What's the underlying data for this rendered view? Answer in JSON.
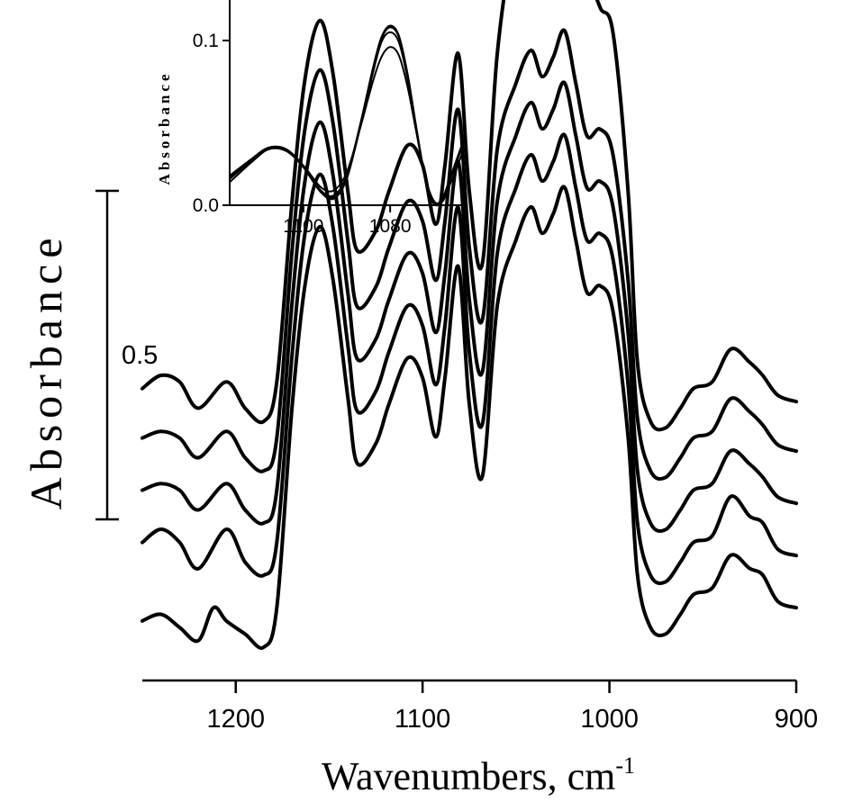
{
  "chart_data": [
    {
      "type": "line",
      "title": "",
      "xlabel": "Wavenumbers, cm",
      "xlabel_superscript": "-1",
      "ylabel": "Absorbance",
      "xlim": [
        1250,
        900
      ],
      "x_reversed": true,
      "x_ticks": [
        1200,
        1100,
        1000,
        900
      ],
      "x_tick_labels": [
        "1200",
        "1100",
        "1000",
        "900"
      ],
      "y_axis_shown": false,
      "scale_bar": {
        "label": "0.5",
        "value": 0.5
      },
      "grid": false,
      "legend": "none",
      "line_color": "#000000",
      "series": [
        {
          "x": [
            1250,
            1240,
            1230,
            1220,
            1205,
            1195,
            1185,
            1178,
            1170,
            1163,
            1155,
            1148,
            1140,
            1135,
            1125,
            1118,
            1108,
            1100,
            1093,
            1088,
            1081,
            1075,
            1068,
            1060,
            1050,
            1042,
            1036,
            1030,
            1024,
            1018,
            1012,
            1005,
            998,
            990,
            985,
            978,
            970,
            962,
            955,
            945,
            935,
            925,
            918,
            910,
            900
          ],
          "y": [
            0.08,
            0.1,
            0.09,
            0.05,
            0.09,
            0.05,
            0.03,
            0.09,
            0.36,
            0.55,
            0.64,
            0.56,
            0.38,
            0.29,
            0.32,
            0.38,
            0.45,
            0.42,
            0.33,
            0.42,
            0.59,
            0.38,
            0.27,
            0.59,
            0.78,
            0.83,
            0.78,
            0.86,
            0.92,
            0.82,
            0.72,
            0.66,
            0.62,
            0.38,
            0.12,
            0.03,
            0.02,
            0.05,
            0.08,
            0.09,
            0.14,
            0.12,
            0.1,
            0.07,
            0.06
          ]
        },
        {
          "x": [
            1250,
            1240,
            1230,
            1220,
            1205,
            1195,
            1185,
            1178,
            1170,
            1163,
            1155,
            1148,
            1140,
            1135,
            1125,
            1118,
            1108,
            1100,
            1093,
            1088,
            1081,
            1075,
            1068,
            1060,
            1050,
            1042,
            1036,
            1030,
            1024,
            1018,
            1012,
            1005,
            998,
            990,
            985,
            978,
            970,
            962,
            955,
            945,
            935,
            925,
            918,
            910,
            900
          ],
          "y": [
            0.08,
            0.09,
            0.08,
            0.05,
            0.09,
            0.05,
            0.03,
            0.08,
            0.36,
            0.55,
            0.64,
            0.56,
            0.38,
            0.28,
            0.31,
            0.37,
            0.44,
            0.41,
            0.32,
            0.41,
            0.58,
            0.37,
            0.26,
            0.52,
            0.62,
            0.67,
            0.63,
            0.66,
            0.7,
            0.62,
            0.54,
            0.55,
            0.51,
            0.32,
            0.11,
            0.03,
            0.02,
            0.05,
            0.08,
            0.09,
            0.14,
            0.12,
            0.1,
            0.07,
            0.06
          ]
        },
        {
          "x": [
            1250,
            1240,
            1230,
            1220,
            1205,
            1195,
            1185,
            1178,
            1170,
            1163,
            1155,
            1148,
            1140,
            1135,
            1125,
            1118,
            1108,
            1100,
            1093,
            1088,
            1081,
            1075,
            1068,
            1060,
            1050,
            1042,
            1036,
            1030,
            1024,
            1018,
            1012,
            1005,
            998,
            990,
            985,
            978,
            970,
            962,
            955,
            945,
            935,
            925,
            918,
            910,
            900
          ],
          "y": [
            0.08,
            0.09,
            0.08,
            0.05,
            0.09,
            0.05,
            0.03,
            0.08,
            0.36,
            0.55,
            0.64,
            0.56,
            0.38,
            0.28,
            0.31,
            0.37,
            0.44,
            0.41,
            0.32,
            0.41,
            0.58,
            0.37,
            0.26,
            0.52,
            0.62,
            0.67,
            0.63,
            0.66,
            0.7,
            0.62,
            0.54,
            0.55,
            0.51,
            0.32,
            0.11,
            0.03,
            0.02,
            0.05,
            0.08,
            0.09,
            0.14,
            0.12,
            0.1,
            0.07,
            0.06
          ]
        },
        {
          "x": [
            1250,
            1240,
            1230,
            1220,
            1205,
            1195,
            1185,
            1178,
            1170,
            1163,
            1155,
            1148,
            1140,
            1135,
            1125,
            1118,
            1108,
            1100,
            1093,
            1088,
            1081,
            1075,
            1068,
            1060,
            1050,
            1042,
            1036,
            1030,
            1024,
            1018,
            1012,
            1005,
            998,
            990,
            985,
            978,
            970,
            962,
            955,
            945,
            935,
            925,
            918,
            910,
            900
          ],
          "y": [
            0.08,
            0.1,
            0.08,
            0.04,
            0.1,
            0.05,
            0.03,
            0.08,
            0.36,
            0.55,
            0.64,
            0.56,
            0.38,
            0.28,
            0.31,
            0.37,
            0.44,
            0.41,
            0.32,
            0.41,
            0.59,
            0.37,
            0.26,
            0.52,
            0.62,
            0.67,
            0.63,
            0.66,
            0.7,
            0.62,
            0.54,
            0.55,
            0.51,
            0.32,
            0.11,
            0.03,
            0.02,
            0.05,
            0.08,
            0.09,
            0.15,
            0.12,
            0.11,
            0.07,
            0.06
          ]
        },
        {
          "x": [
            1250,
            1240,
            1230,
            1220,
            1212,
            1205,
            1195,
            1185,
            1178,
            1170,
            1163,
            1155,
            1148,
            1140,
            1135,
            1125,
            1118,
            1108,
            1100,
            1093,
            1088,
            1081,
            1075,
            1068,
            1060,
            1050,
            1042,
            1036,
            1030,
            1024,
            1018,
            1012,
            1005,
            998,
            990,
            985,
            978,
            970,
            962,
            955,
            945,
            935,
            925,
            918,
            910,
            900
          ],
          "y": [
            0.04,
            0.05,
            0.03,
            0.01,
            0.06,
            0.04,
            0.02,
            0.0,
            0.06,
            0.36,
            0.55,
            0.64,
            0.56,
            0.38,
            0.28,
            0.31,
            0.37,
            0.44,
            0.41,
            0.32,
            0.41,
            0.58,
            0.37,
            0.26,
            0.52,
            0.62,
            0.67,
            0.63,
            0.66,
            0.7,
            0.62,
            0.54,
            0.55,
            0.51,
            0.32,
            0.11,
            0.03,
            0.02,
            0.05,
            0.08,
            0.09,
            0.14,
            0.12,
            0.11,
            0.07,
            0.06
          ]
        }
      ]
    },
    {
      "type": "line",
      "title": "",
      "xlabel": "",
      "ylabel": "Absorbance",
      "xlim": [
        1117,
        1063
      ],
      "x_reversed": true,
      "x_ticks": [
        1100,
        1080
      ],
      "x_tick_labels": [
        "1100",
        "1080"
      ],
      "ylim": [
        0.0,
        0.12
      ],
      "y_ticks": [
        0.0,
        0.1
      ],
      "y_tick_labels": [
        "0.0",
        "0.1"
      ],
      "grid": false,
      "legend": "none",
      "line_color": "#000000",
      "series": [
        {
          "x": [
            1117,
            1112,
            1108,
            1104,
            1100,
            1096,
            1093,
            1090,
            1087,
            1084,
            1082,
            1080,
            1078,
            1076,
            1074,
            1072,
            1070,
            1068,
            1066,
            1063
          ],
          "y": [
            0.018,
            0.028,
            0.035,
            0.034,
            0.024,
            0.009,
            0.006,
            0.018,
            0.048,
            0.083,
            0.102,
            0.109,
            0.103,
            0.08,
            0.048,
            0.018,
            0.002,
            0.004,
            0.018,
            0.039
          ]
        },
        {
          "x": [
            1117,
            1112,
            1108,
            1104,
            1100,
            1096,
            1093,
            1090,
            1087,
            1084,
            1082,
            1080,
            1078,
            1076,
            1074,
            1072,
            1070,
            1068,
            1066,
            1063
          ],
          "y": [
            0.016,
            0.027,
            0.034,
            0.033,
            0.023,
            0.008,
            0.005,
            0.017,
            0.046,
            0.08,
            0.099,
            0.105,
            0.099,
            0.077,
            0.046,
            0.017,
            0.001,
            0.003,
            0.017,
            0.038
          ]
        },
        {
          "x": [
            1117,
            1112,
            1108,
            1104,
            1100,
            1096,
            1093,
            1090,
            1087,
            1084,
            1082,
            1080,
            1078,
            1076,
            1074,
            1072,
            1070,
            1068,
            1066,
            1063
          ],
          "y": [
            0.014,
            0.026,
            0.034,
            0.033,
            0.024,
            0.011,
            0.009,
            0.02,
            0.046,
            0.075,
            0.09,
            0.096,
            0.091,
            0.072,
            0.045,
            0.018,
            0.003,
            0.002,
            0.014,
            0.034
          ]
        },
        {
          "x": [
            1117,
            1112,
            1108,
            1104,
            1100,
            1096,
            1093,
            1090,
            1087,
            1084,
            1082,
            1080,
            1078,
            1076,
            1074,
            1072,
            1070,
            1068,
            1066,
            1063
          ],
          "y": [
            0.017,
            0.028,
            0.035,
            0.034,
            0.023,
            0.008,
            0.004,
            0.016,
            0.047,
            0.082,
            0.101,
            0.108,
            0.102,
            0.079,
            0.047,
            0.017,
            0.001,
            0.003,
            0.018,
            0.04
          ]
        }
      ]
    }
  ]
}
